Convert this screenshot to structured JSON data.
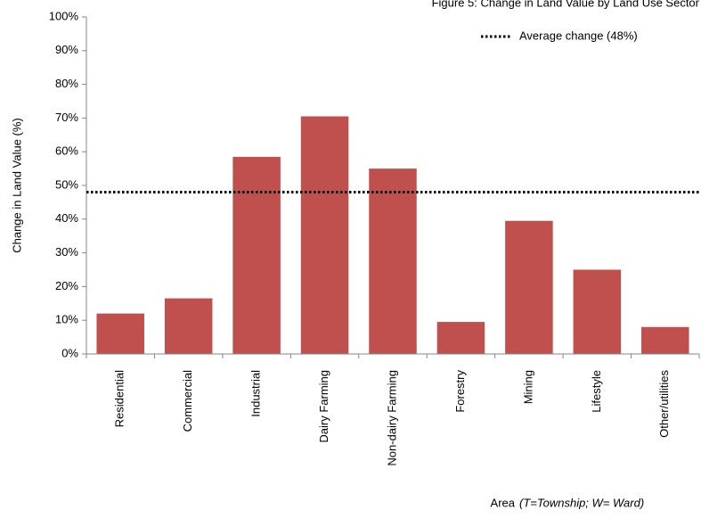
{
  "chart_data": {
    "type": "bar",
    "title": "Figure 5: Change in Land Value by Land Use Sector",
    "x_label": "Area",
    "x_label_note": "(T=Township; W= Ward)",
    "y_label": "Change in Land Value (%)",
    "categories": [
      "Residential",
      "Commercial",
      "Industrial",
      "Dairy Farming",
      "Non-dairy Farming",
      "Forestry",
      "Mining",
      "Lifestyle",
      "Other/utilities"
    ],
    "values": [
      12,
      16.5,
      58.5,
      70.5,
      55,
      9.5,
      39.5,
      25,
      8
    ],
    "color": "#c0504d",
    "ylim": [
      0,
      100
    ],
    "yticks": [
      {
        "value": 0,
        "label": "0%"
      },
      {
        "value": 10,
        "label": "10%"
      },
      {
        "value": 20,
        "label": "20%"
      },
      {
        "value": 30,
        "label": "30%"
      },
      {
        "value": 40,
        "label": "40%"
      },
      {
        "value": 50,
        "label": "50%"
      },
      {
        "value": 60,
        "label": "60%"
      },
      {
        "value": 70,
        "label": "70%"
      },
      {
        "value": 80,
        "label": "80%"
      },
      {
        "value": 90,
        "label": "90%"
      },
      {
        "value": 100,
        "label": "100%"
      }
    ],
    "grid": false,
    "reference_line": {
      "name": "Average change (48%)",
      "value": 48,
      "color": "#000000"
    },
    "legend_position": "top-right"
  }
}
